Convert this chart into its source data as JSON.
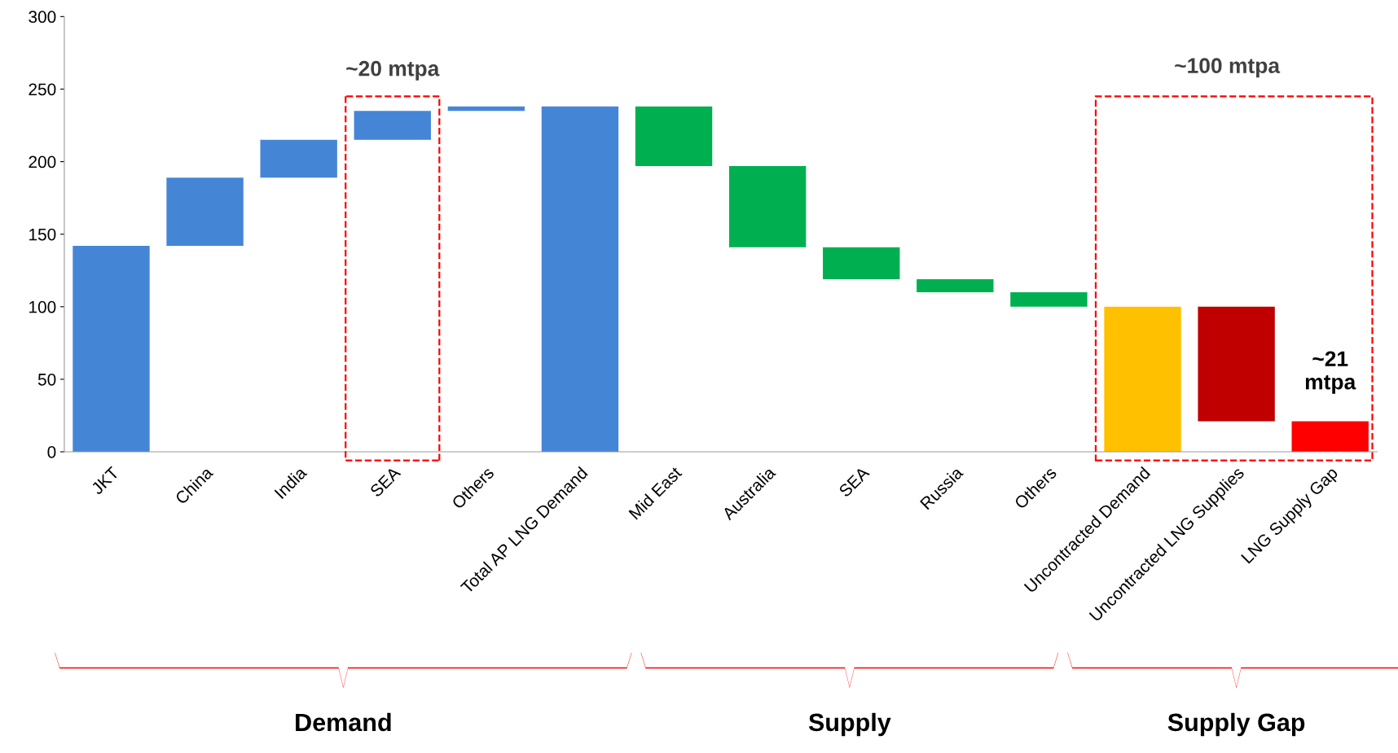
{
  "chart_data": {
    "type": "bar",
    "categories": [
      "JKT",
      "China",
      "India",
      "SEA",
      "Others",
      "Total AP LNG Demand",
      "Mid East",
      "Australia",
      "SEA",
      "Russia",
      "Others",
      "Uncontracted Demand",
      "Uncontracted LNG Supplies",
      "LNG Supply Gap"
    ],
    "values": [
      142,
      47,
      26,
      20,
      3,
      238,
      41,
      56,
      22,
      9,
      10,
      100,
      79,
      21
    ],
    "base": [
      0,
      142,
      189,
      215,
      235,
      0,
      197,
      141,
      119,
      110,
      100,
      0,
      21,
      0
    ],
    "colors": [
      "#4585d6",
      "#4585d6",
      "#4585d6",
      "#4585d6",
      "#4585d6",
      "#4585d6",
      "#00b050",
      "#00b050",
      "#00b050",
      "#00b050",
      "#00b050",
      "#ffc000",
      "#c00000",
      "#ff0000"
    ],
    "ylim": [
      0,
      300
    ],
    "yticks": [
      0,
      50,
      100,
      150,
      200,
      250,
      300
    ],
    "grid": false,
    "annotations": [
      "~20 mtpa",
      "~100 mtpa",
      "~21\nmtpa",
      "Demand",
      "Supply",
      "Supply Gap"
    ]
  }
}
